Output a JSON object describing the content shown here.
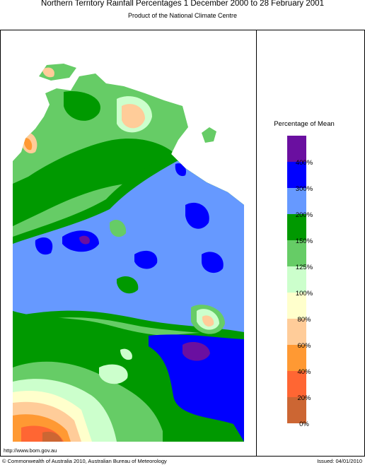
{
  "header": {
    "title": "Northern Territory Rainfall Percentages 1 December 2000 to 28 February 2001",
    "subtitle": "Product of the National Climate Centre"
  },
  "legend": {
    "title": "Percentage of Mean",
    "colors": [
      "#6a0fa0",
      "#0000ff",
      "#6699ff",
      "#009900",
      "#66cc66",
      "#ccffcc",
      "#ffffcc",
      "#ffcc99",
      "#ff9933",
      "#ff6633",
      "#cc6633"
    ],
    "labels": [
      "400%",
      "300%",
      "200%",
      "150%",
      "125%",
      "100%",
      "80%",
      "60%",
      "40%",
      "20%",
      "0%"
    ]
  },
  "footer": {
    "url": "http://www.bom.gov.au",
    "copyright": "© Commonwealth of Australia 2010, Australian Bureau of Meteorology",
    "issued": "Issued: 04/01/2010"
  }
}
